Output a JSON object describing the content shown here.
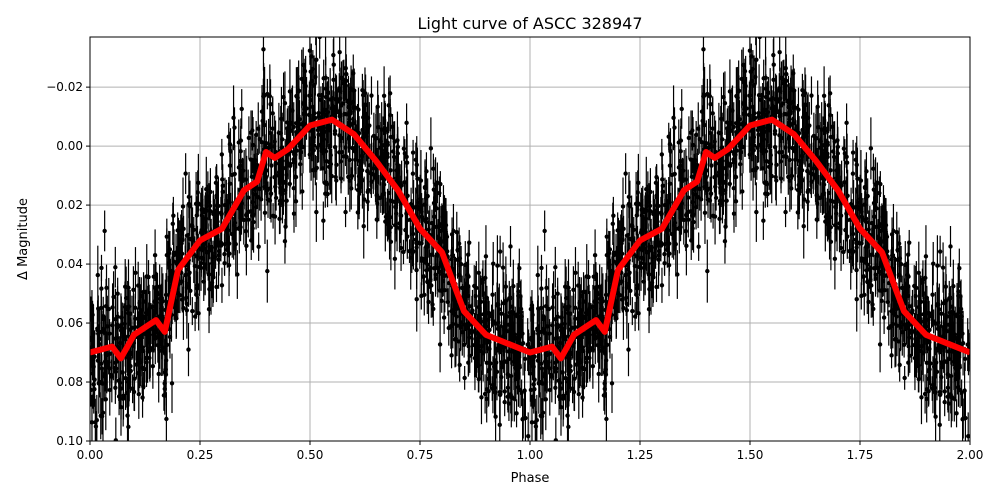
{
  "chart_data": {
    "type": "scatter",
    "title": "Light curve of ASCC 328947",
    "xlabel": "Phase",
    "ylabel": "Δ Magnitude",
    "xlim": [
      0,
      2
    ],
    "ylim": [
      0.1,
      -0.037
    ],
    "y_inverted": true,
    "grid": true,
    "xticks": [
      "0.00",
      "0.25",
      "0.50",
      "0.75",
      "1.00",
      "1.25",
      "1.50",
      "1.75",
      "2.00"
    ],
    "xtick_values": [
      0,
      0.25,
      0.5,
      0.75,
      1,
      1.25,
      1.5,
      1.75,
      2
    ],
    "yticks": [
      "−0.02",
      "0.00",
      "0.02",
      "0.04",
      "0.06",
      "0.08",
      "0.10"
    ],
    "ytick_values": [
      -0.02,
      0,
      0.02,
      0.04,
      0.06,
      0.08,
      0.1
    ],
    "colors": {
      "points": "#000000",
      "binned_curve": "#ff0000",
      "grid": "#b0b0b0"
    },
    "series": [
      {
        "kind": "binned-curve",
        "color": "#ff0000",
        "phase": [
          0,
          0.05,
          0.07,
          0.1,
          0.15,
          0.17,
          0.2,
          0.25,
          0.3,
          0.35,
          0.38,
          0.4,
          0.42,
          0.45,
          0.5,
          0.55,
          0.6,
          0.65,
          0.7,
          0.75,
          0.8,
          0.85,
          0.9,
          0.95,
          1.0
        ],
        "delta_mag": [
          0.07,
          0.068,
          0.072,
          0.064,
          0.059,
          0.063,
          0.042,
          0.032,
          0.028,
          0.015,
          0.012,
          0.002,
          0.004,
          0.001,
          -0.007,
          -0.009,
          -0.004,
          0.005,
          0.015,
          0.028,
          0.036,
          0.056,
          0.064,
          0.067,
          0.07
        ]
      },
      {
        "kind": "points-with-errorbars",
        "color": "#000000",
        "scatter_sigma": 0.012
      }
    ]
  }
}
